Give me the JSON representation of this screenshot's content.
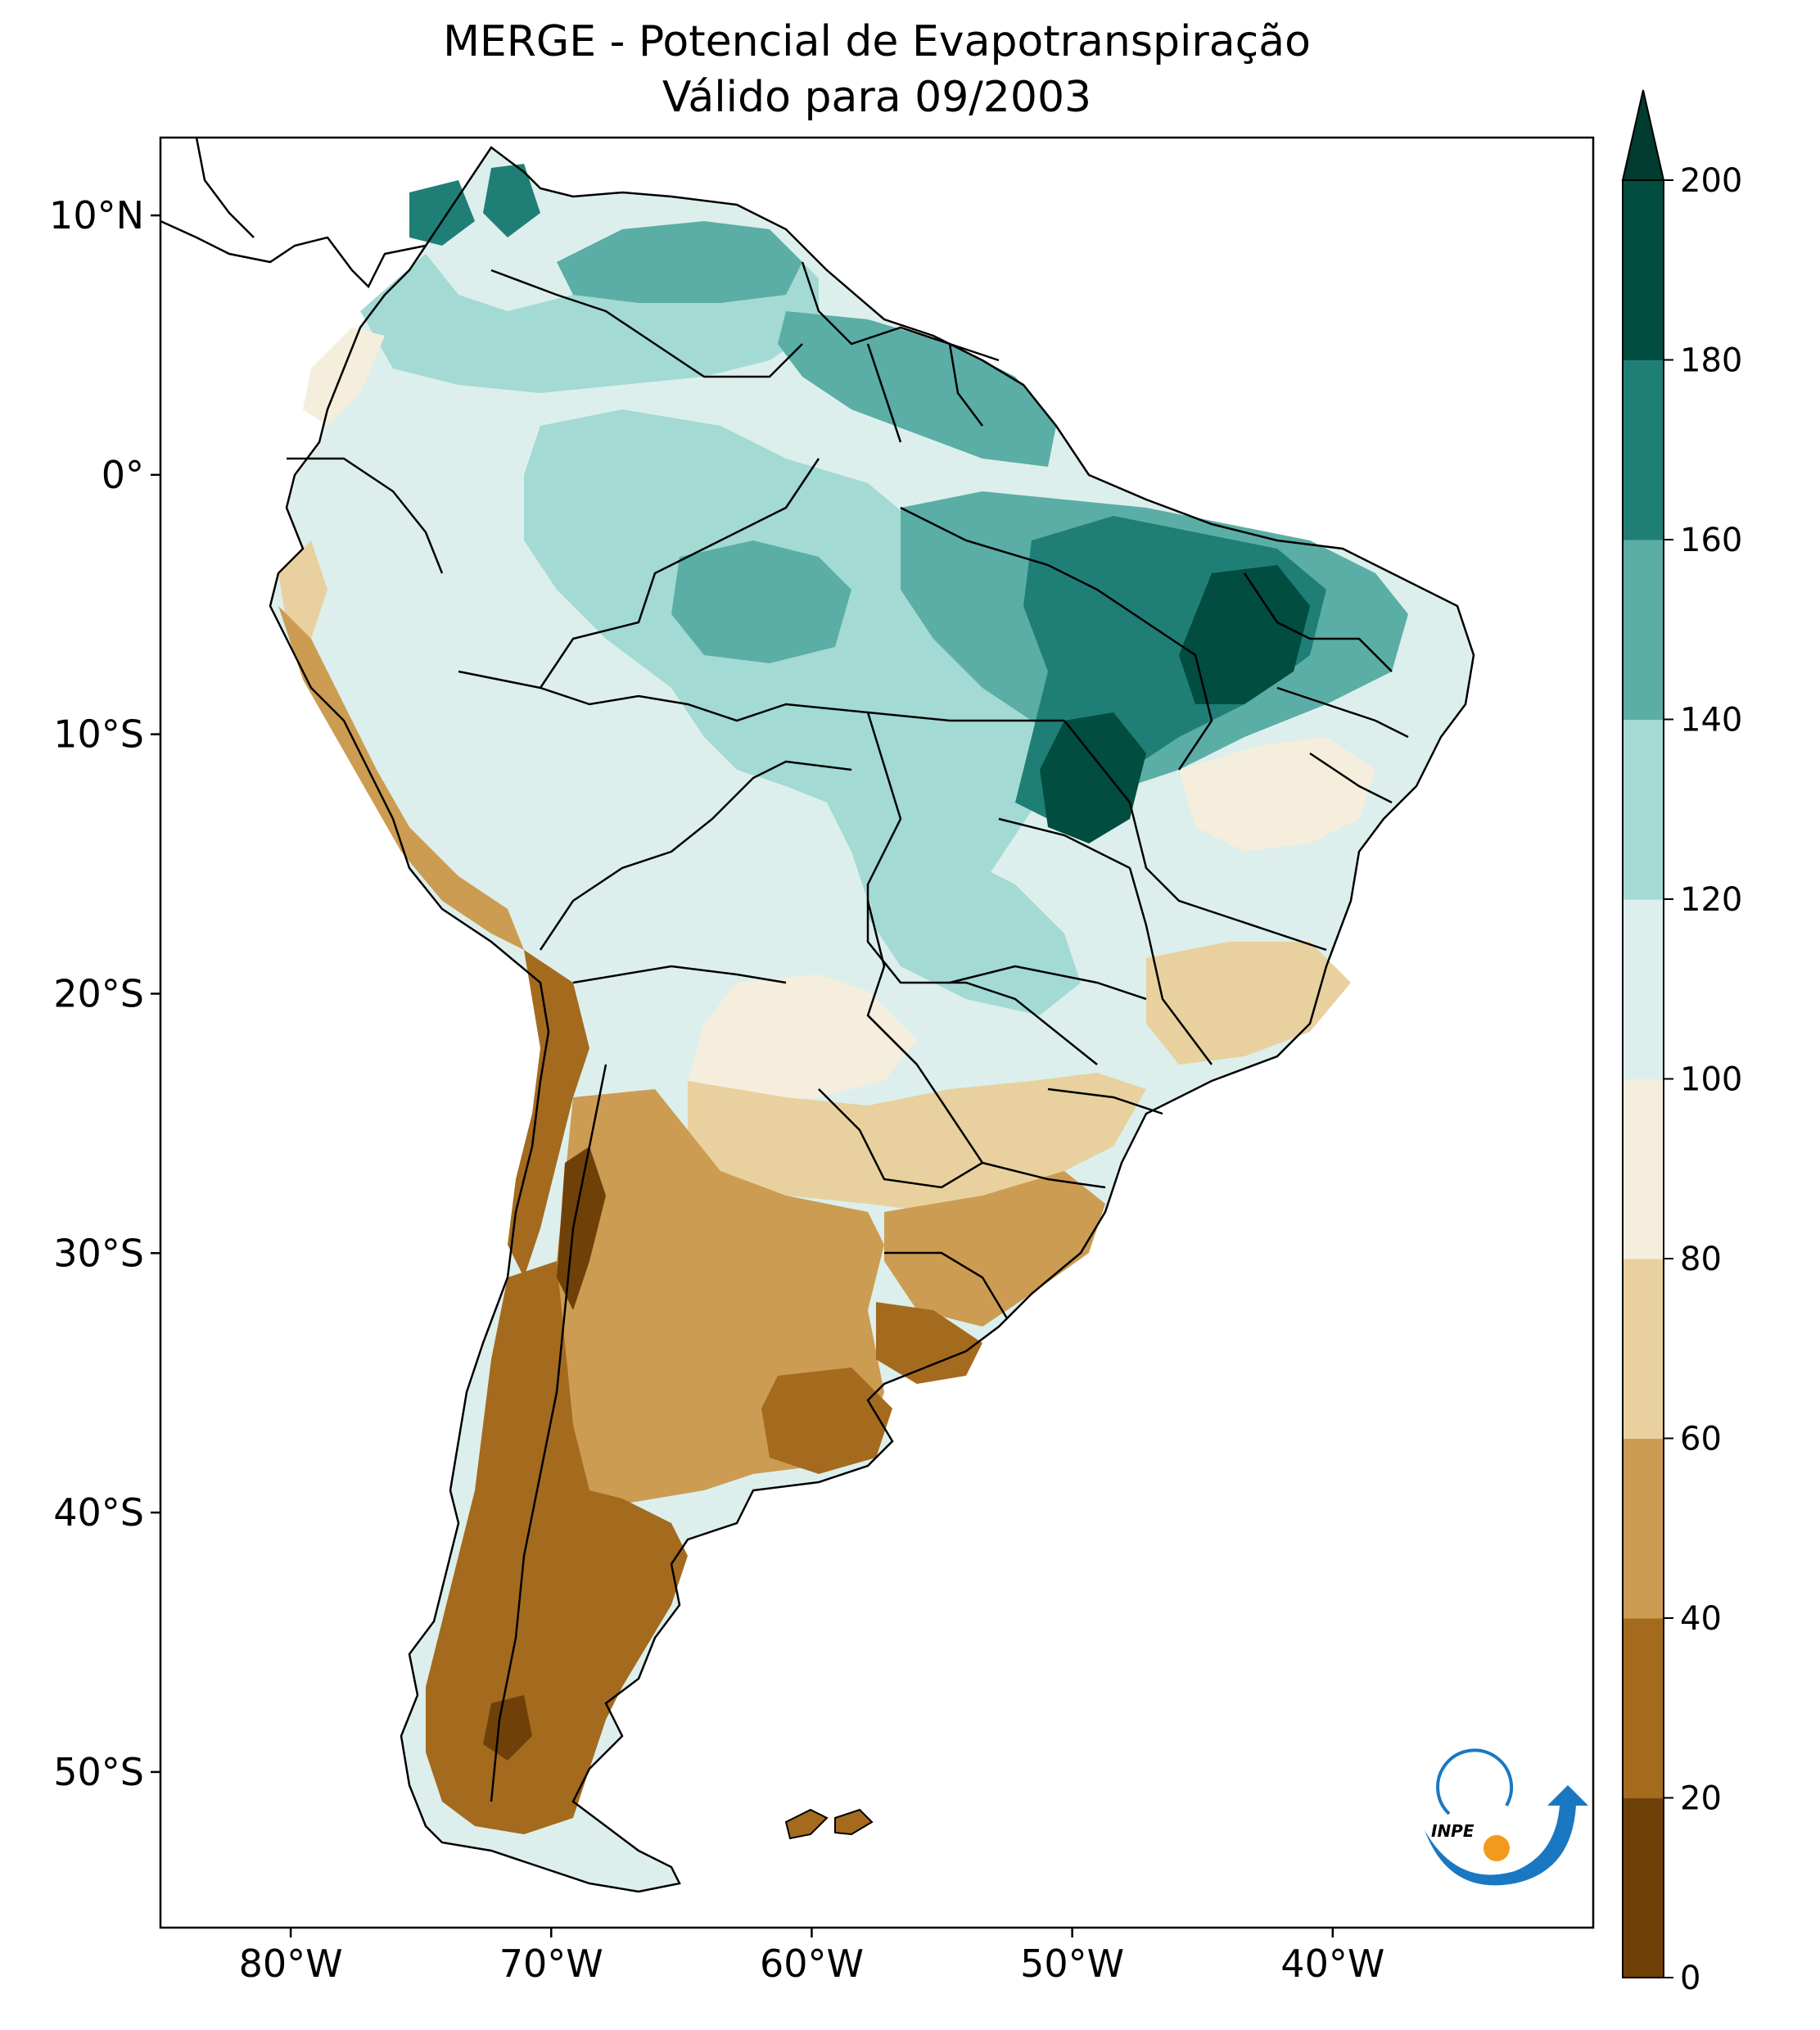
{
  "title": {
    "line1": "MERGE - Potencial de Evapotranspiração",
    "line2": "Válido para 09/2003"
  },
  "map": {
    "lon_range": [
      -85,
      -30
    ],
    "lat_range": [
      -56,
      13
    ],
    "lon_ticks": [
      {
        "value": -80,
        "label": "80°W"
      },
      {
        "value": -70,
        "label": "70°W"
      },
      {
        "value": -60,
        "label": "60°W"
      },
      {
        "value": -50,
        "label": "50°W"
      },
      {
        "value": -40,
        "label": "40°W"
      }
    ],
    "lat_ticks": [
      {
        "value": 10,
        "label": "10°N"
      },
      {
        "value": 0,
        "label": "0°"
      },
      {
        "value": -10,
        "label": "10°S"
      },
      {
        "value": -20,
        "label": "20°S"
      },
      {
        "value": -30,
        "label": "30°S"
      },
      {
        "value": -40,
        "label": "40°S"
      },
      {
        "value": -50,
        "label": "50°S"
      }
    ]
  },
  "colorbar": {
    "extend": "max",
    "levels": [
      0,
      20,
      40,
      60,
      80,
      100,
      120,
      140,
      160,
      180,
      200
    ],
    "labels": [
      "0",
      "20",
      "40",
      "60",
      "80",
      "100",
      "120",
      "140",
      "160",
      "180",
      "200"
    ],
    "colors": [
      "#6f4108",
      "#a46a1e",
      "#cc9c52",
      "#e8d19e",
      "#f5eedd",
      "#dcefec",
      "#a3dad3",
      "#5aaea5",
      "#1f7f77",
      "#014d40"
    ],
    "extend_color": "#003c30"
  },
  "logo": {
    "text": "INPE"
  },
  "colors": {
    "ocean": "#ffffff",
    "border": "#000000",
    "logo_blue": "#1a78c2",
    "logo_orange": "#f39a1e"
  }
}
